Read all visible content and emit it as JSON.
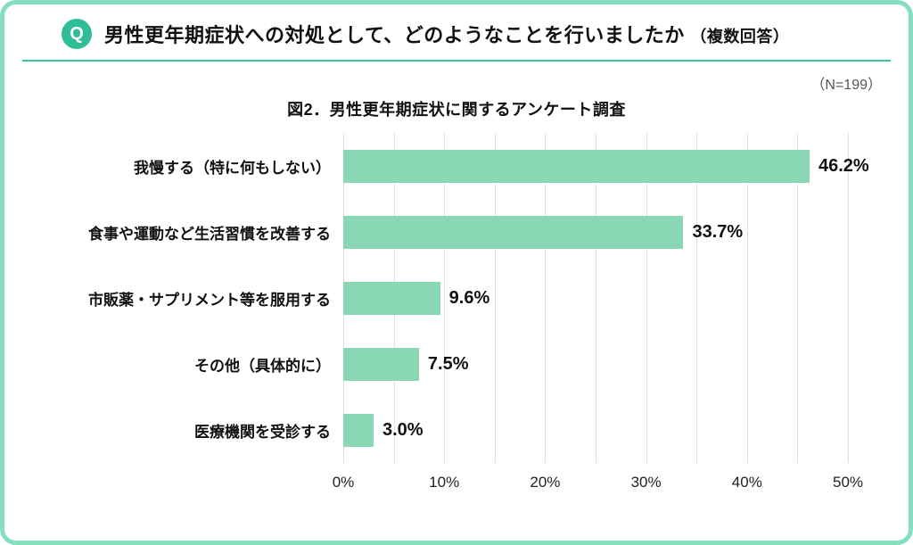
{
  "header": {
    "q_badge": "Q",
    "title": "男性更年期症状への対処として、どのようなことを行いましたか",
    "title_suffix": "（複数回答）"
  },
  "sample_size": "（N=199）",
  "colors": {
    "border": "#86dfbc",
    "q_badge": "#2ebd96",
    "divider": "#3fc9a2",
    "bar": "#8ad7b6",
    "gridline": "#e0e0e0"
  },
  "chart_data": {
    "type": "bar",
    "orientation": "horizontal",
    "title": "図2．男性更年期症状に関するアンケート調査",
    "categories": [
      "我慢する（特に何もしない）",
      "食事や運動など生活習慣を改善する",
      "市販薬・サプリメント等を服用する",
      "その他（具体的に）",
      "医療機関を受診する"
    ],
    "values": [
      46.2,
      33.7,
      9.6,
      7.5,
      3.0
    ],
    "value_labels": [
      "46.2%",
      "33.7%",
      "9.6%",
      "7.5%",
      "3.0%"
    ],
    "xlim": [
      0,
      50
    ],
    "grid_step": 5,
    "x_tick_values": [
      0,
      10,
      20,
      30,
      40,
      50
    ],
    "x_ticks": [
      "0%",
      "10%",
      "20%",
      "30%",
      "40%",
      "50%"
    ],
    "grid": true,
    "legend": "none"
  }
}
